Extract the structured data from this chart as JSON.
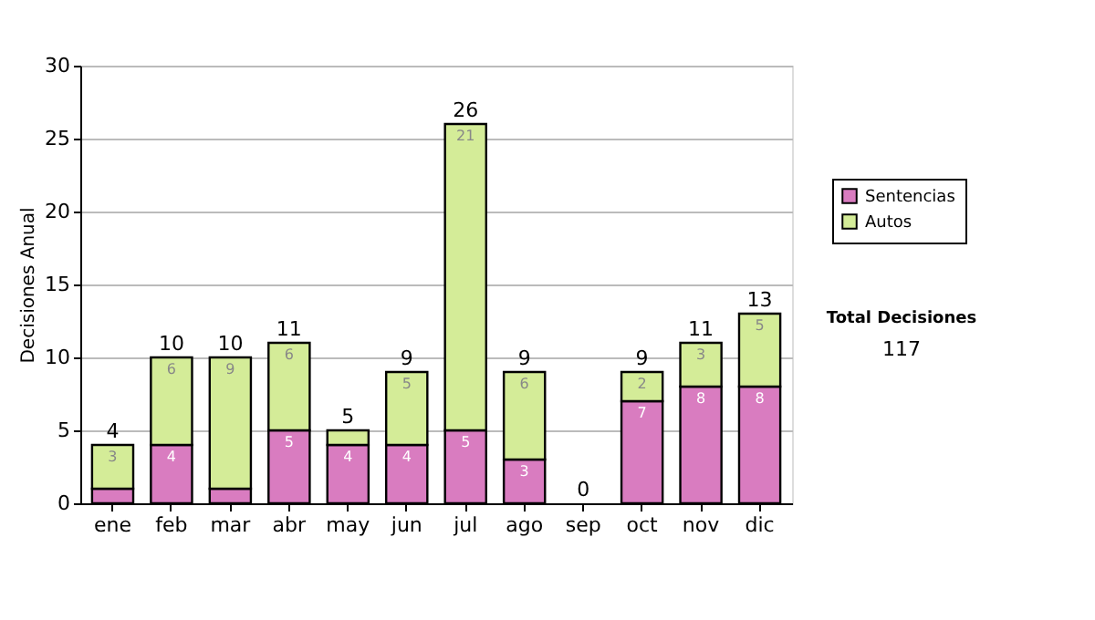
{
  "chart_data": {
    "type": "bar",
    "stacked": true,
    "ylabel": "Decisiones Anual",
    "categories": [
      "ene",
      "feb",
      "mar",
      "abr",
      "may",
      "jun",
      "jul",
      "ago",
      "sep",
      "oct",
      "nov",
      "dic"
    ],
    "series": [
      {
        "name": "Sentencias",
        "color": "#d97cc0",
        "values": [
          1,
          4,
          1,
          5,
          4,
          4,
          5,
          3,
          0,
          7,
          8,
          8
        ],
        "value_labels": [
          null,
          "4",
          null,
          "5",
          "4",
          "4",
          "5",
          "3",
          null,
          "7",
          "8",
          "8"
        ]
      },
      {
        "name": "Autos",
        "color": "#d4ec98",
        "values": [
          3,
          6,
          9,
          6,
          1,
          5,
          21,
          6,
          0,
          2,
          3,
          5
        ],
        "value_labels": [
          "3",
          "6",
          "9",
          "6",
          null,
          "5",
          "21",
          "6",
          null,
          "2",
          "3",
          "5"
        ]
      }
    ],
    "totals": [
      "4",
      "10",
      "10",
      "11",
      "5",
      "9",
      "26",
      "9",
      "0",
      "9",
      "11",
      "13"
    ],
    "ylim": [
      0,
      30
    ],
    "yticks": [
      0,
      5,
      10,
      15,
      20,
      25,
      30
    ],
    "grid": "y",
    "legend": "right",
    "annotations": [
      "Total Decisiones",
      "117"
    ]
  }
}
